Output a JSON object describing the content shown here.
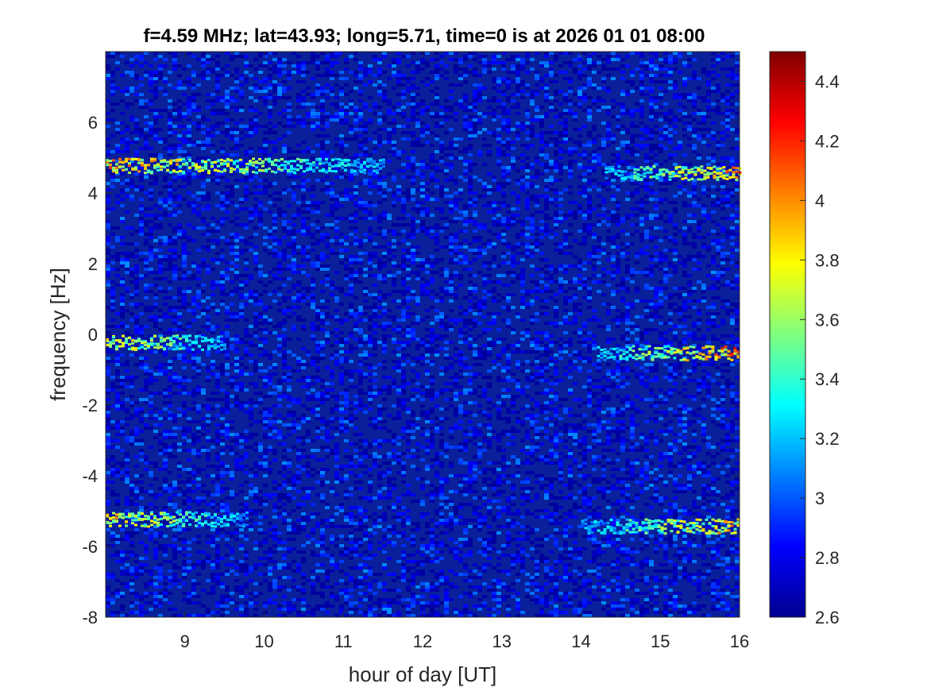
{
  "chart_data": {
    "type": "heatmap",
    "title": "f=4.59 MHz;  lat=43.93; long=5.71, time=0 is at 2026 01 01 08:00",
    "xlabel": "hour of day [UT]",
    "ylabel": "frequency [Hz]",
    "xlim": [
      8,
      16
    ],
    "ylim": [
      -8,
      8
    ],
    "x_ticks": [
      9,
      10,
      11,
      12,
      13,
      14,
      15,
      16
    ],
    "y_ticks": [
      -8,
      -6,
      -4,
      -2,
      0,
      2,
      4,
      6
    ],
    "colorbar": {
      "range": [
        2.6,
        4.5
      ],
      "ticks": [
        2.6,
        2.8,
        3,
        3.2,
        3.4,
        3.6,
        3.8,
        4,
        4.2,
        4.4
      ],
      "colormap": "jet"
    },
    "traces": [
      {
        "freq": 4.8,
        "hour_start": 8.0,
        "hour_end": 11.5,
        "peak": 4.2
      },
      {
        "freq": 4.6,
        "hour_start": 14.3,
        "hour_end": 16.0,
        "peak": 4.3
      },
      {
        "freq": -0.2,
        "hour_start": 8.0,
        "hour_end": 9.5,
        "peak": 4.1
      },
      {
        "freq": -0.5,
        "hour_start": 14.2,
        "hour_end": 16.0,
        "peak": 4.4
      },
      {
        "freq": -5.2,
        "hour_start": 8.0,
        "hour_end": 9.8,
        "peak": 4.1
      },
      {
        "freq": -5.4,
        "hour_start": 14.0,
        "hour_end": 16.0,
        "peak": 4.2
      }
    ],
    "background_level": 2.75,
    "colors": {
      "background": "#0a1f9a",
      "axis": "#262626"
    }
  }
}
